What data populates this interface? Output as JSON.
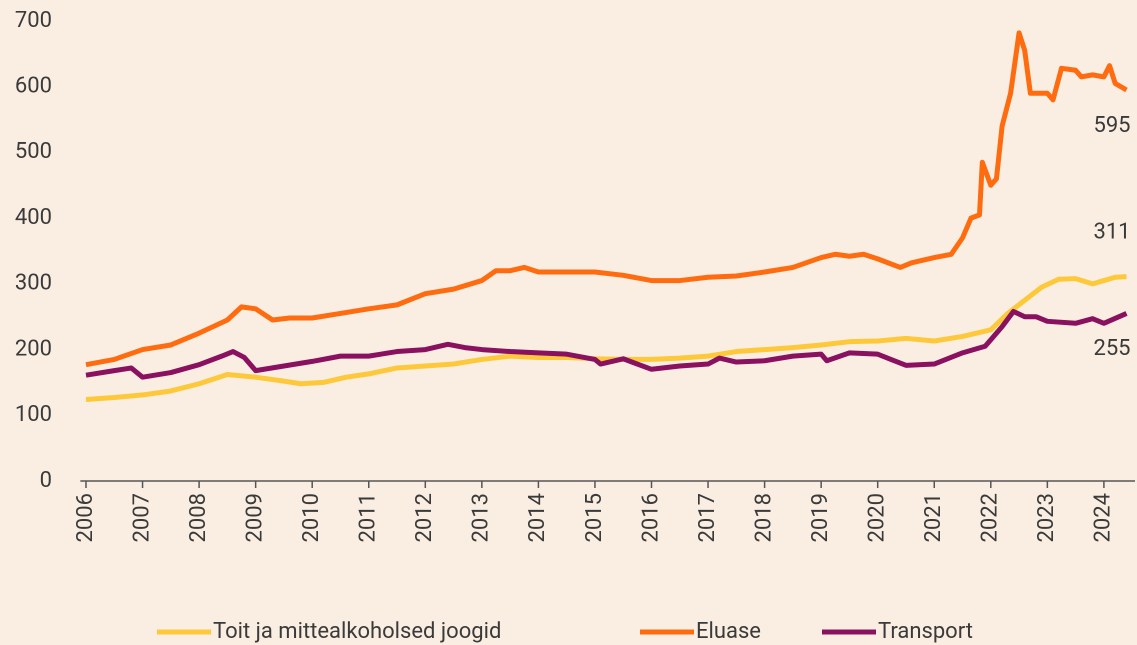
{
  "chart_data": {
    "type": "line",
    "xlim": [
      2005.9,
      2024.55
    ],
    "xticks": [
      2006,
      2007,
      2008,
      2009,
      2010,
      2011,
      2012,
      2013,
      2014,
      2015,
      2016,
      2017,
      2018,
      2019,
      2020,
      2021,
      2022,
      2023,
      2024
    ],
    "ylim": [
      0,
      700
    ],
    "yticks": [
      0,
      100,
      200,
      300,
      400,
      500,
      600,
      700
    ],
    "grid": false,
    "legend": "bottom",
    "series": [
      {
        "name": "Toit ja mittealkoholsed joogid",
        "color": "#fdc93a",
        "x": [
          2006,
          2006.5,
          2007,
          2007.5,
          2008,
          2008.5,
          2009,
          2009.5,
          2009.8,
          2010.2,
          2010.6,
          2011,
          2011.5,
          2012,
          2012.5,
          2013,
          2013.5,
          2014,
          2014.5,
          2015,
          2015.5,
          2016,
          2016.5,
          2017,
          2017.5,
          2018,
          2018.5,
          2019,
          2019.5,
          2020,
          2020.5,
          2021,
          2021.5,
          2022,
          2022.3,
          2022.6,
          2022.9,
          2023.2,
          2023.5,
          2023.8,
          2024,
          2024.2,
          2024.4
        ],
        "values": [
          124,
          127,
          131,
          137,
          148,
          162,
          158,
          152,
          148,
          150,
          158,
          163,
          172,
          175,
          178,
          185,
          190,
          188,
          188,
          186,
          185,
          185,
          187,
          190,
          197,
          200,
          203,
          207,
          212,
          213,
          217,
          213,
          220,
          230,
          255,
          275,
          295,
          307,
          308,
          300,
          305,
          310,
          311
        ]
      },
      {
        "name": "Eluase",
        "color": "#ff6b0f",
        "x": [
          2006,
          2006.5,
          2007,
          2007.5,
          2008,
          2008.5,
          2008.75,
          2009,
          2009.3,
          2009.6,
          2010,
          2010.5,
          2011,
          2011.5,
          2012,
          2012.5,
          2013,
          2013.25,
          2013.5,
          2013.75,
          2014,
          2014.5,
          2015,
          2015.5,
          2016,
          2016.5,
          2017,
          2017.5,
          2018,
          2018.5,
          2019,
          2019.25,
          2019.5,
          2019.75,
          2020,
          2020.4,
          2020.6,
          2021,
          2021.3,
          2021.5,
          2021.65,
          2021.8,
          2021.85,
          2022,
          2022.1,
          2022.2,
          2022.35,
          2022.5,
          2022.6,
          2022.7,
          2023,
          2023.1,
          2023.25,
          2023.5,
          2023.6,
          2023.8,
          2024,
          2024.1,
          2024.2,
          2024.4
        ],
        "values": [
          177,
          185,
          200,
          207,
          225,
          245,
          265,
          262,
          245,
          248,
          248,
          255,
          262,
          268,
          285,
          292,
          305,
          320,
          320,
          325,
          318,
          318,
          318,
          313,
          305,
          305,
          310,
          312,
          318,
          325,
          340,
          345,
          342,
          345,
          338,
          325,
          332,
          340,
          345,
          370,
          400,
          405,
          485,
          450,
          460,
          540,
          590,
          682,
          655,
          590,
          590,
          580,
          628,
          625,
          615,
          618,
          615,
          632,
          605,
          595
        ]
      },
      {
        "name": "Transport",
        "color": "#8a1060",
        "x": [
          2006,
          2006.5,
          2006.8,
          2007,
          2007.5,
          2008,
          2008.4,
          2008.6,
          2008.8,
          2009,
          2009.5,
          2010,
          2010.5,
          2011,
          2011.5,
          2012,
          2012.4,
          2012.7,
          2013,
          2013.5,
          2014,
          2014.5,
          2015,
          2015.1,
          2015.5,
          2016,
          2016.5,
          2017,
          2017.2,
          2017.5,
          2018,
          2018.5,
          2019,
          2019.1,
          2019.5,
          2020,
          2020.5,
          2021,
          2021.5,
          2021.9,
          2022,
          2022.2,
          2022.4,
          2022.6,
          2022.8,
          2023,
          2023.5,
          2023.8,
          2024,
          2024.4
        ],
        "values": [
          161,
          168,
          172,
          158,
          165,
          177,
          190,
          197,
          188,
          168,
          175,
          182,
          190,
          190,
          197,
          200,
          208,
          203,
          200,
          197,
          195,
          193,
          185,
          178,
          186,
          170,
          175,
          178,
          187,
          181,
          183,
          190,
          193,
          183,
          195,
          193,
          176,
          178,
          195,
          205,
          215,
          235,
          258,
          250,
          250,
          243,
          240,
          247,
          240,
          255
        ]
      }
    ]
  }
}
